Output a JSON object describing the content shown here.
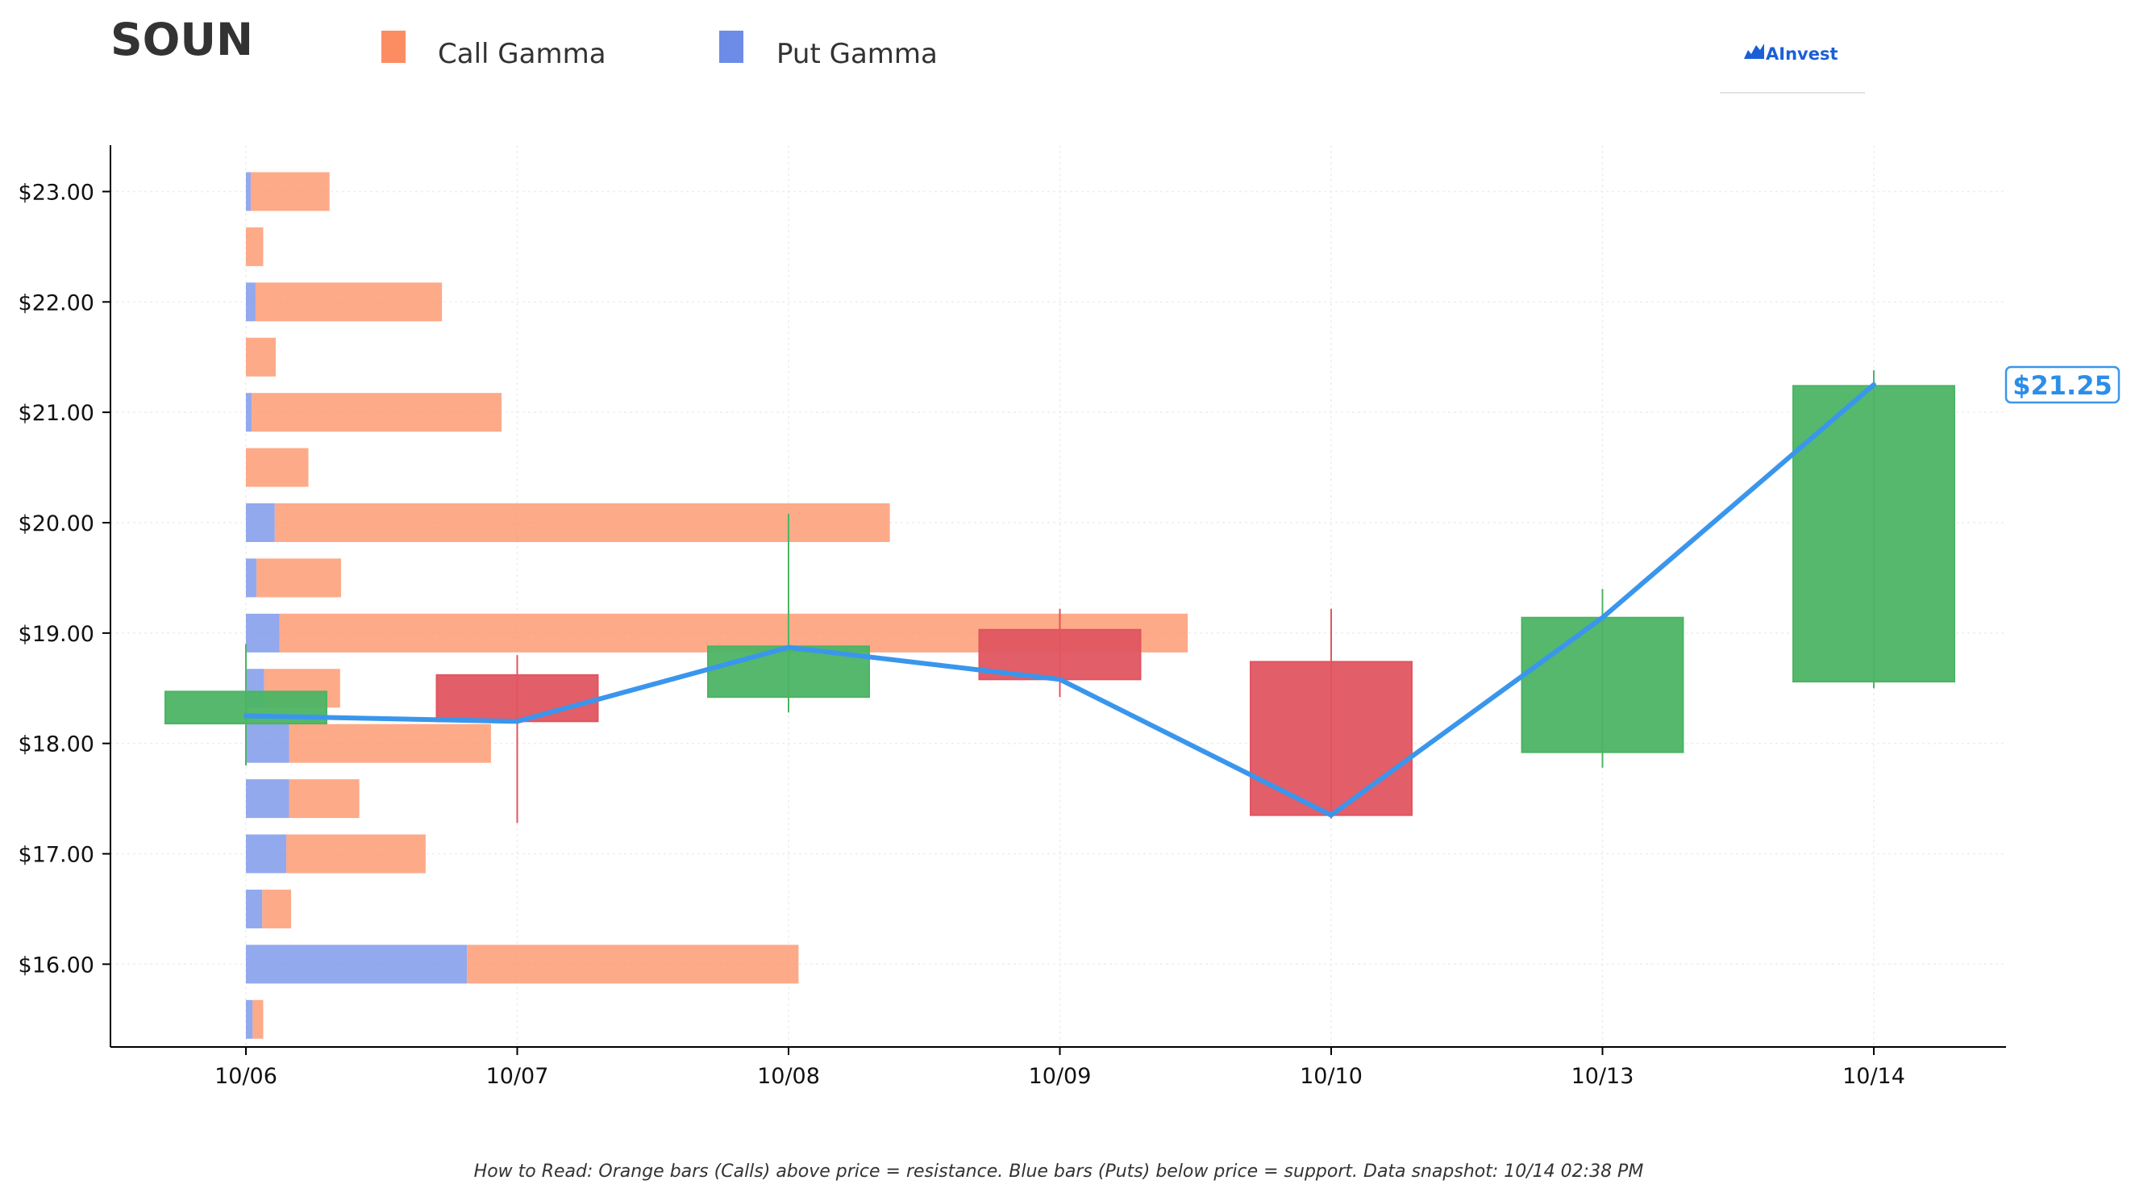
{
  "ticker": "SOUN",
  "logo_text": "AInvest",
  "colors": {
    "call": "#fc8d62",
    "put": "#6d8ce8",
    "up": "#4cb464",
    "down": "#e05560",
    "price_line": "#3a96ec"
  },
  "chart_data": {
    "type": "candlestick_with_horizontal_bars",
    "dates": [
      "10/06",
      "10/07",
      "10/08",
      "10/09",
      "10/10",
      "10/13",
      "10/14"
    ],
    "y_tick_labels": [
      "$16.00",
      "$17.00",
      "$18.00",
      "$19.00",
      "$20.00",
      "$21.00",
      "$22.00",
      "$23.00"
    ],
    "y_tick_values": [
      16,
      17,
      18,
      19,
      20,
      21,
      22,
      23
    ],
    "ylim": [
      15.25,
      23.42
    ],
    "legend": [
      {
        "name": "Call Gamma",
        "key": "call"
      },
      {
        "name": "Put Gamma",
        "key": "put"
      }
    ],
    "candles": [
      {
        "date": "10/06",
        "open": 18.47,
        "high": 18.9,
        "low": 17.8,
        "close": 18.18,
        "direction": "up"
      },
      {
        "date": "10/07",
        "open": 18.62,
        "high": 18.8,
        "low": 17.28,
        "close": 18.2,
        "direction": "down"
      },
      {
        "date": "10/08",
        "open": 18.42,
        "high": 20.08,
        "low": 18.28,
        "close": 18.88,
        "direction": "up"
      },
      {
        "date": "10/09",
        "open": 19.03,
        "high": 19.22,
        "low": 18.42,
        "close": 18.58,
        "direction": "down"
      },
      {
        "date": "10/10",
        "open": 18.74,
        "high": 19.22,
        "low": 17.32,
        "close": 17.35,
        "direction": "down"
      },
      {
        "date": "10/13",
        "open": 17.92,
        "high": 19.4,
        "low": 17.78,
        "close": 19.14,
        "direction": "up"
      },
      {
        "date": "10/14",
        "open": 18.56,
        "high": 21.38,
        "low": 18.5,
        "close": 21.24,
        "direction": "up"
      }
    ],
    "price_line": {
      "name": "Price",
      "values": [
        18.25,
        18.2,
        18.87,
        18.58,
        17.35,
        19.14,
        21.25
      ]
    },
    "gamma_bars": [
      {
        "strike": 15.5,
        "put": 0.07,
        "call": 0.11
      },
      {
        "strike": 16.0,
        "put": 2.3,
        "call": 3.45
      },
      {
        "strike": 16.5,
        "put": 0.17,
        "call": 0.3
      },
      {
        "strike": 17.0,
        "put": 0.42,
        "call": 1.45
      },
      {
        "strike": 17.5,
        "put": 0.45,
        "call": 0.73
      },
      {
        "strike": 18.0,
        "put": 0.45,
        "call": 2.1
      },
      {
        "strike": 18.5,
        "put": 0.19,
        "call": 0.79
      },
      {
        "strike": 19.0,
        "put": 0.35,
        "call": 9.45
      },
      {
        "strike": 19.5,
        "put": 0.11,
        "call": 0.88
      },
      {
        "strike": 20.0,
        "put": 0.3,
        "call": 6.4
      },
      {
        "strike": 20.5,
        "put": 0.0,
        "call": 0.65
      },
      {
        "strike": 21.0,
        "put": 0.06,
        "call": 2.6
      },
      {
        "strike": 21.5,
        "put": 0.0,
        "call": 0.31
      },
      {
        "strike": 22.0,
        "put": 0.1,
        "call": 1.94
      },
      {
        "strike": 22.5,
        "put": 0.0,
        "call": 0.18
      },
      {
        "strike": 23.0,
        "put": 0.05,
        "call": 0.82
      }
    ],
    "current_price_label": "$21.25",
    "footnote": "How to Read: Orange bars (Calls) above price = resistance. Blue bars (Puts) below price = support. Data snapshot: 10/14 02:38 PM",
    "grid": true
  }
}
